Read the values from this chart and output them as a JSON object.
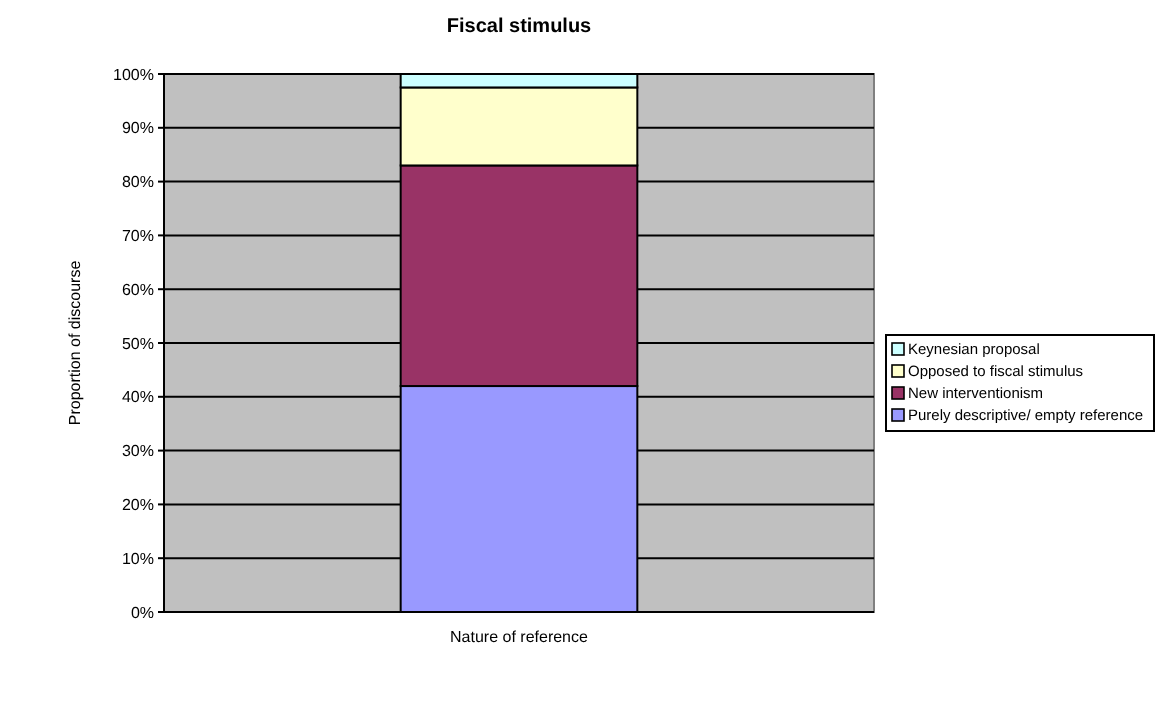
{
  "chart_data": {
    "type": "bar",
    "title": "Fiscal stimulus",
    "ylabel": "Proportion of discourse",
    "categories": [
      "Nature of reference"
    ],
    "stacked": true,
    "grid": "y",
    "legend": "right",
    "ylim": [
      0,
      100
    ],
    "yticks": [
      {
        "value": 0,
        "label": "0%"
      },
      {
        "value": 10,
        "label": "10%"
      },
      {
        "value": 20,
        "label": "20%"
      },
      {
        "value": 30,
        "label": "30%"
      },
      {
        "value": 40,
        "label": "40%"
      },
      {
        "value": 50,
        "label": "50%"
      },
      {
        "value": 60,
        "label": "60%"
      },
      {
        "value": 70,
        "label": "70%"
      },
      {
        "value": 80,
        "label": "80%"
      },
      {
        "value": 90,
        "label": "90%"
      },
      {
        "value": 100,
        "label": "100%"
      }
    ],
    "series": [
      {
        "name": "Purely descriptive/ empty reference",
        "color": "#9999ff",
        "values": [
          42
        ]
      },
      {
        "name": "New interventionism",
        "color": "#993366",
        "values": [
          41
        ]
      },
      {
        "name": "Opposed to fiscal stimulus",
        "color": "#ffffcc",
        "values": [
          14.5
        ]
      },
      {
        "name": "Keynesian proposal",
        "color": "#ccffff",
        "values": [
          2.5
        ]
      }
    ]
  }
}
